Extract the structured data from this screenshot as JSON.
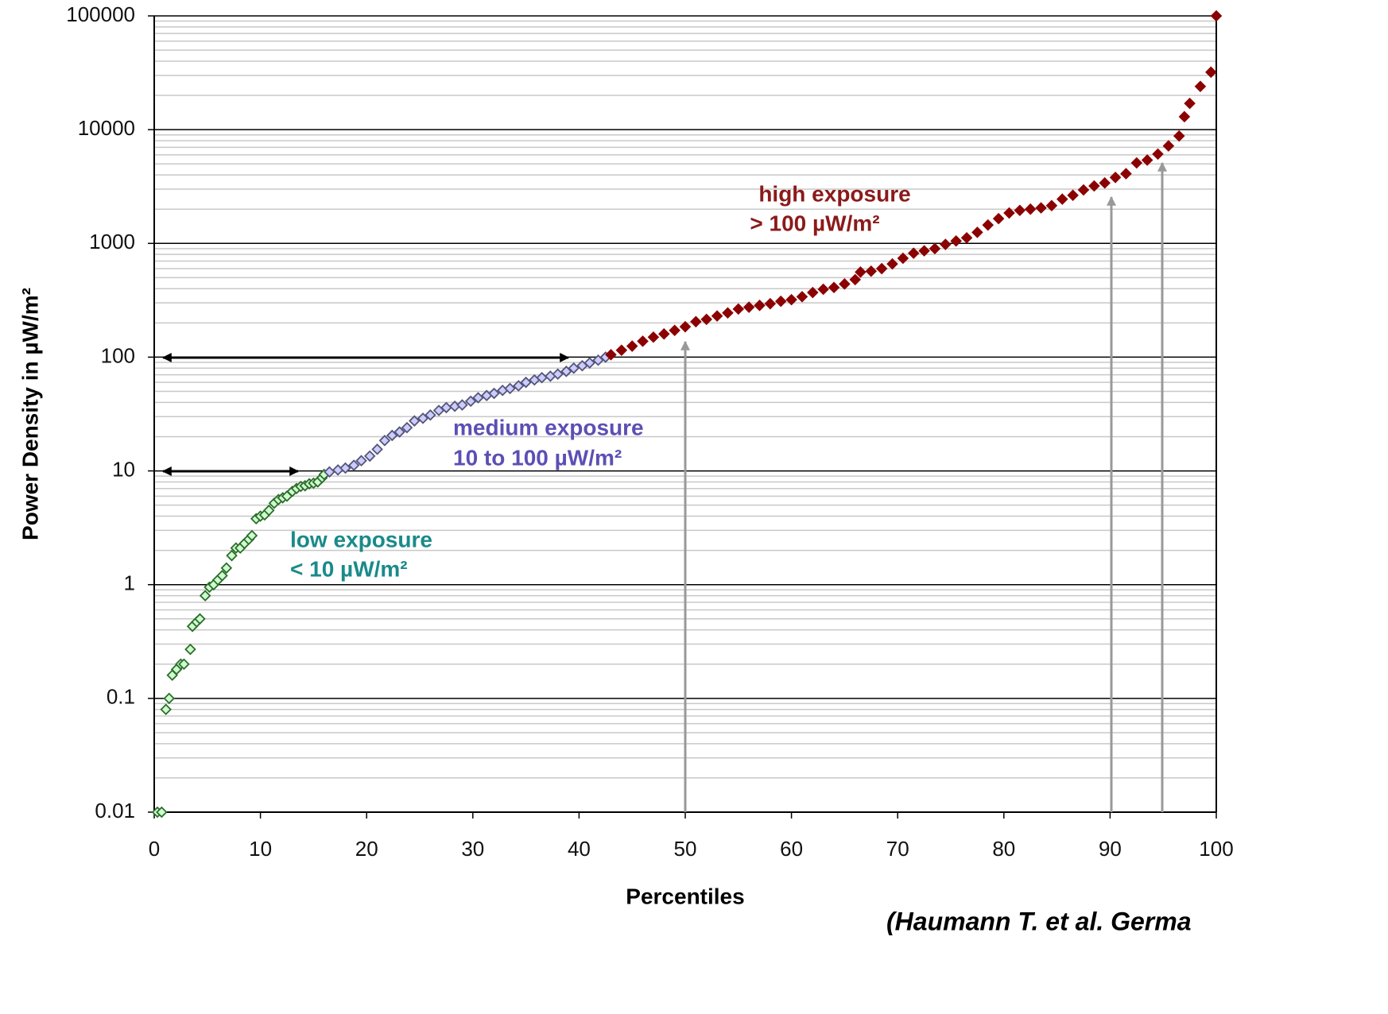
{
  "chart_data": {
    "type": "scatter",
    "x_label": "Percentiles",
    "y_label": "Power Density in µW/m²",
    "caption": "(Haumann T. et al. Germa",
    "log_y": true,
    "grid": true,
    "minor_grid": true,
    "xlim": [
      0,
      100
    ],
    "xticks": [
      0,
      10,
      20,
      30,
      40,
      50,
      60,
      70,
      80,
      90,
      100
    ],
    "ylim": [
      0.01,
      100000
    ],
    "yticks": [
      0.01,
      0.1,
      1,
      10,
      100,
      1000,
      10000,
      100000
    ],
    "annotations": [
      {
        "text": "high exposure",
        "color": "#8b1a1a"
      },
      {
        "text": "> 100 µW/m²",
        "color": "#8b1a1a"
      },
      {
        "text": "medium exposure",
        "color": "#5b4fb5"
      },
      {
        "text": "10 to 100 µW/m²",
        "color": "#5b4fb5"
      },
      {
        "text": "low exposure",
        "color": "#1a8a8a"
      },
      {
        "text": "< 10 µW/m²",
        "color": "#1a8a8a"
      }
    ],
    "series": [
      {
        "color": "#ccffcc",
        "edge": "#2e6b2e",
        "x": [
          0.3,
          0.7,
          1.1,
          1.4,
          1.7,
          2.1,
          2.5,
          2.8,
          3.4,
          3.6,
          4,
          4.3,
          4.8,
          5.2,
          5.6,
          6,
          6.4,
          6.8,
          7.3,
          7.7,
          8.1,
          8.5,
          8.9,
          9.2,
          9.6,
          10,
          10.4,
          10.8,
          11.3,
          11.7,
          12.1,
          12.5,
          13,
          13.4,
          13.8,
          14.2,
          14.6,
          15,
          15.4,
          15.8,
          16
        ],
        "values": [
          0.01,
          0.01,
          0.08,
          0.1,
          0.16,
          0.18,
          0.2,
          0.2,
          0.27,
          0.43,
          0.47,
          0.5,
          0.8,
          0.95,
          1,
          1.1,
          1.2,
          1.4,
          1.8,
          2.1,
          2.1,
          2.3,
          2.5,
          2.7,
          3.8,
          4,
          4.1,
          4.5,
          5.2,
          5.6,
          5.8,
          6,
          6.6,
          7,
          7.3,
          7.4,
          7.7,
          7.8,
          8,
          8.7,
          9.3
        ]
      },
      {
        "color": "#ccccff",
        "edge": "#55557a",
        "x": [
          16.5,
          17.3,
          18,
          18.8,
          19.5,
          20.3,
          21,
          21.7,
          22.4,
          23.1,
          23.8,
          24.5,
          25.3,
          26,
          26.8,
          27.5,
          28.3,
          29,
          29.8,
          30.5,
          31.3,
          32,
          32.8,
          33.5,
          34.3,
          35,
          35.8,
          36.5,
          37.3,
          38,
          38.8,
          39.5,
          40.3,
          41,
          41.8,
          42.5
        ],
        "values": [
          9.8,
          10.2,
          10.6,
          11.2,
          12.3,
          13.5,
          15.5,
          18.5,
          20.5,
          22,
          24,
          27.5,
          29,
          31,
          34,
          36,
          37,
          38,
          41,
          44,
          46,
          48,
          51,
          53,
          56,
          60,
          63,
          66,
          68,
          71,
          75,
          80,
          84,
          89,
          94,
          100
        ]
      },
      {
        "color": "#8b0000",
        "edge": "#8b0000",
        "x": [
          43,
          44,
          45,
          46,
          47,
          48,
          49,
          50,
          51,
          52,
          53,
          54,
          55,
          56,
          57,
          58,
          59,
          60,
          61,
          62,
          63,
          64,
          65,
          66,
          66.5,
          67.5,
          68.5,
          69.5,
          70.5,
          71.5,
          72.5,
          73.5,
          74.5,
          75.5,
          76.5,
          77.5,
          78.5,
          79.5,
          80.5,
          81.5,
          82.5,
          83.5,
          84.5,
          85.5,
          86.5,
          87.5,
          88.5,
          89.5,
          90.5,
          91.5,
          92.5,
          93.5,
          94.5,
          95.5,
          96.5,
          97,
          97.5,
          98.5,
          99.5,
          100
        ],
        "values": [
          105,
          115,
          125,
          138,
          150,
          160,
          172,
          185,
          205,
          215,
          230,
          245,
          265,
          275,
          285,
          295,
          310,
          320,
          340,
          370,
          395,
          410,
          440,
          480,
          560,
          570,
          600,
          660,
          740,
          820,
          860,
          900,
          980,
          1050,
          1120,
          1250,
          1450,
          1650,
          1850,
          1950,
          2000,
          2050,
          2150,
          2450,
          2650,
          2950,
          3200,
          3400,
          3800,
          4100,
          5100,
          5400,
          6100,
          7200,
          8800,
          13000,
          17000,
          24000,
          32000,
          100000
        ]
      }
    ]
  }
}
